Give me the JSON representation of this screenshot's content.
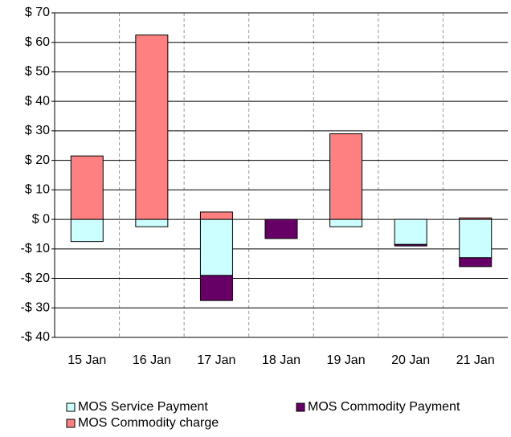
{
  "chart_data": {
    "type": "stacked_bar",
    "categories": [
      "15 Jan",
      "16 Jan",
      "17 Jan",
      "18 Jan",
      "19 Jan",
      "20 Jan",
      "21 Jan"
    ],
    "series": [
      {
        "name": "MOS Service Payment",
        "color": "#ccffff",
        "values": [
          -7.5,
          -2.5,
          -19,
          0,
          -2.5,
          -8.5,
          -13
        ]
      },
      {
        "name": "MOS Commodity Payment",
        "color": "#660066",
        "values": [
          0,
          0,
          -8.5,
          -6.5,
          0,
          -0.5,
          -3
        ]
      },
      {
        "name": "MOS Commodity charge",
        "color": "#ff8080",
        "values": [
          21.5,
          62.5,
          2.5,
          0,
          29,
          0,
          0.5
        ]
      }
    ],
    "ylim": [
      -40,
      70
    ],
    "yticks": [
      {
        "value": -40,
        "label": "-$ 40"
      },
      {
        "value": -30,
        "label": "-$ 30"
      },
      {
        "value": -20,
        "label": "-$ 20"
      },
      {
        "value": -10,
        "label": "-$ 10"
      },
      {
        "value": 0,
        "label": "$ 0"
      },
      {
        "value": 10,
        "label": "$ 10"
      },
      {
        "value": 20,
        "label": "$ 20"
      },
      {
        "value": 30,
        "label": "$ 30"
      },
      {
        "value": 40,
        "label": "$ 40"
      },
      {
        "value": 50,
        "label": "$ 50"
      },
      {
        "value": 60,
        "label": "$ 60"
      },
      {
        "value": 70,
        "label": "$ 70"
      }
    ],
    "grid": true,
    "legend": "bottom"
  }
}
